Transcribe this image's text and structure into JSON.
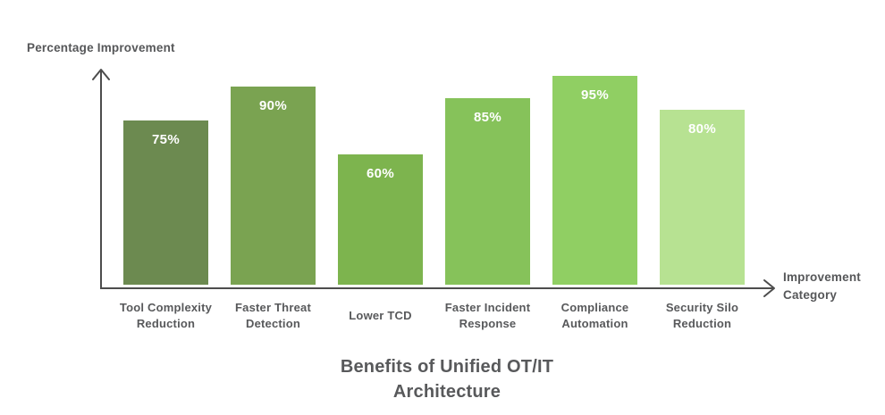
{
  "chart_data": {
    "type": "bar",
    "title": "Benefits of Unified OT/IT Architecture",
    "xlabel": "Improvement Category",
    "ylabel": "Percentage Improvement",
    "categories": [
      "Tool Complexity Reduction",
      "Faster Threat Detection",
      "Lower TCD",
      "Faster Incident Response",
      "Compliance Automation",
      "Security Silo Reduction"
    ],
    "values": [
      75,
      90,
      60,
      85,
      95,
      80
    ],
    "value_labels": [
      "75%",
      "90%",
      "60%",
      "85%",
      "95%",
      "80%"
    ],
    "bar_colors": [
      "#6C8A50",
      "#7AA351",
      "#7DB44E",
      "#86C25A",
      "#90CF63",
      "#B7E292"
    ],
    "ylim": [
      0,
      100
    ],
    "grid": false,
    "legend": null,
    "layout_hints": {
      "axis_color": "#4d4d4d",
      "label_color": "#58595b",
      "bar_border_color": "#ffffff",
      "value_label_color": "#ffffff",
      "background": "#ffffff",
      "arrow_style": "open-chevron"
    }
  }
}
